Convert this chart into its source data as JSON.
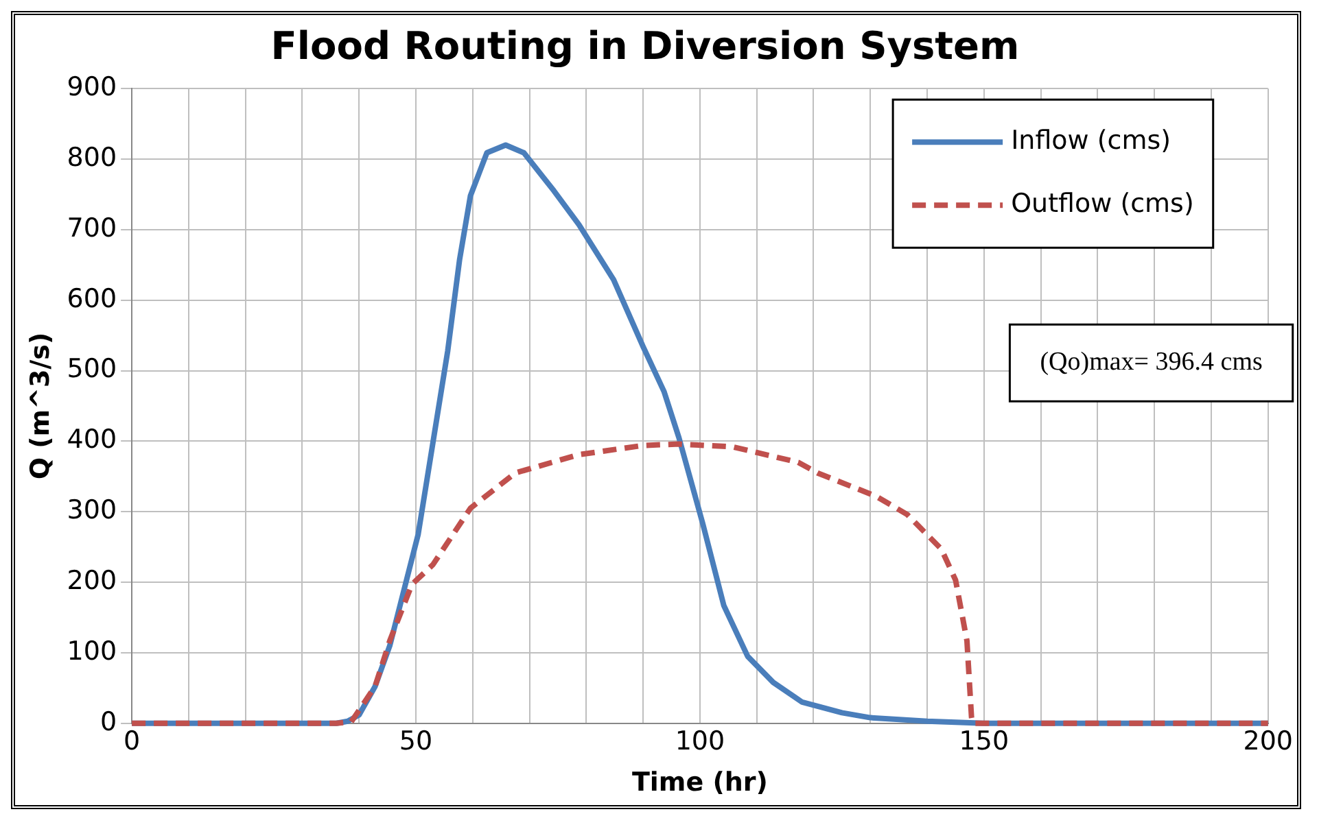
{
  "chart_data": {
    "type": "line",
    "title": "Flood Routing in Diversion System",
    "xlabel": "Time (hr)",
    "ylabel": "Q (m^3/s)",
    "xlim": [
      0,
      200
    ],
    "ylim": [
      0,
      900
    ],
    "xticks": [
      0,
      {
        "value": 10,
        "label": null
      },
      {
        "value": 20,
        "label": null
      },
      {
        "value": 30,
        "label": null
      },
      {
        "value": 40,
        "label": null
      },
      50,
      {
        "value": 60,
        "label": null
      },
      {
        "value": 70,
        "label": null
      },
      {
        "value": 80,
        "label": null
      },
      {
        "value": 90,
        "label": null
      },
      100,
      {
        "value": 110,
        "label": null
      },
      {
        "value": 120,
        "label": null
      },
      {
        "value": 130,
        "label": null
      },
      {
        "value": 140,
        "label": null
      },
      150,
      {
        "value": 160,
        "label": null
      },
      {
        "value": 170,
        "label": null
      },
      {
        "value": 180,
        "label": null
      },
      {
        "value": 190,
        "label": null
      },
      200
    ],
    "yticks": [
      0,
      100,
      200,
      300,
      400,
      500,
      600,
      700,
      800,
      900
    ],
    "grid": true,
    "legend": "top right",
    "marker": "none",
    "annotations": [
      "(Qo)max= 396.4 cms"
    ],
    "series": [
      {
        "name": "Inflow (cms)",
        "color": "#4a7ebb",
        "line_style": "solid",
        "x": [
          0,
          10,
          20,
          30,
          36,
          38,
          40,
          42.8,
          45.4,
          50.4,
          53,
          55.6,
          57.7,
          59.6,
          62.5,
          65.8,
          69,
          74.3,
          78.7,
          84.8,
          90,
          93.7,
          96.3,
          100.5,
          104.2,
          108.4,
          112.9,
          118,
          125,
          130,
          140,
          150,
          160,
          170,
          180,
          190,
          200
        ],
        "values": [
          0,
          0,
          0,
          0,
          0,
          3,
          12,
          52,
          110,
          268,
          398,
          528,
          658,
          748,
          809,
          820,
          809,
          755,
          707,
          629,
          534,
          470,
          405,
          283,
          167,
          95,
          58,
          30,
          15,
          8,
          3,
          0,
          0,
          0,
          0,
          0,
          0
        ]
      },
      {
        "name": "Outflow (cms)",
        "color": "#c0504d",
        "line_style": "dashed",
        "x": [
          0,
          10,
          20,
          30,
          36,
          38.6,
          42.8,
          45.4,
          49.3,
          53,
          59.6,
          67.5,
          78.7,
          90,
          96.3,
          105.8,
          117.3,
          120.7,
          131,
          136.5,
          142.5,
          145,
          147,
          147.8,
          148,
          160,
          170,
          180,
          190,
          200
        ],
        "values": [
          0,
          0,
          0,
          0,
          0,
          2,
          52,
          117,
          197,
          225,
          305,
          355,
          381,
          394,
          396,
          392,
          370,
          355,
          322,
          296,
          247,
          203,
          117,
          9,
          0,
          0,
          0,
          0,
          0,
          0
        ]
      }
    ]
  }
}
